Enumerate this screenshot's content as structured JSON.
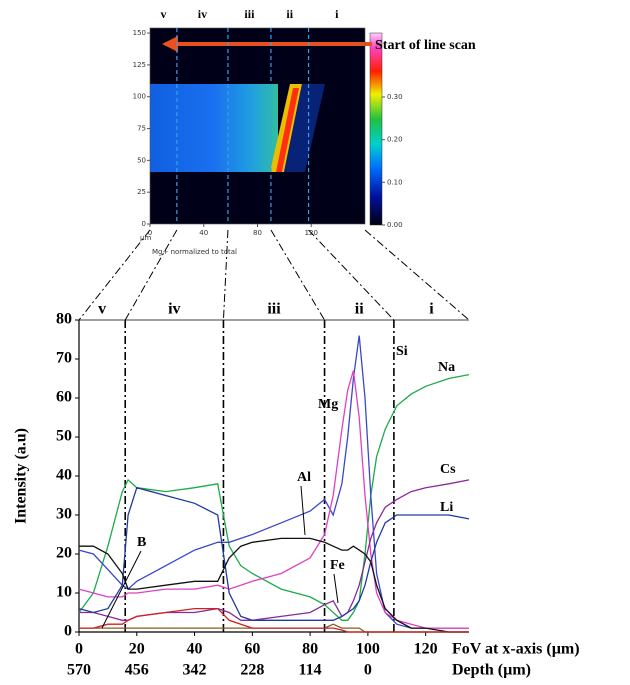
{
  "chart_data": [
    {
      "type": "heatmap",
      "xlabel": "Mg+ normalized to total",
      "xunit": "µm",
      "annotation": "Start of line scan",
      "xlim": [
        0,
        160
      ],
      "ylim": [
        0,
        154
      ],
      "xticks": [
        0,
        40,
        80,
        120
      ],
      "yticks": [
        0,
        25,
        50,
        75,
        100,
        125,
        150
      ],
      "colorbar_lim": [
        0,
        0.45
      ],
      "colorbar_ticks": [
        {
          "value": 0,
          "label": "0.00"
        },
        {
          "value": 0.1,
          "label": "0.10"
        },
        {
          "value": 0.2,
          "label": "0.20"
        },
        {
          "value": 0.3,
          "label": "0.30"
        }
      ],
      "regions": [
        "v",
        "iv",
        "iii",
        "ii",
        "i"
      ],
      "boundaries": [
        20,
        58,
        90,
        118
      ]
    },
    {
      "type": "line",
      "ylabel": "Intensity (a.u)",
      "xlabel": "FoV at x-axis (µm)",
      "x2label": "Depth (µm)",
      "xlim": [
        0,
        135
      ],
      "ylim": [
        0,
        80
      ],
      "xticks": [
        0,
        20,
        40,
        60,
        80,
        100,
        120
      ],
      "yticks": [
        0,
        10,
        20,
        30,
        40,
        50,
        60,
        70,
        80
      ],
      "x2lim": [
        570,
        -199.5
      ],
      "x2ticks": [
        570,
        456,
        342,
        228,
        114,
        0
      ],
      "regions": [
        "v",
        "iv",
        "iii",
        "ii",
        "i"
      ],
      "boundaries": [
        16,
        50,
        85,
        109
      ],
      "x": [
        0,
        5,
        10,
        15,
        17,
        20,
        30,
        40,
        48,
        52,
        56,
        60,
        70,
        80,
        85,
        88,
        91,
        93,
        95,
        97,
        99,
        101,
        103,
        106,
        110,
        115,
        120,
        128,
        135
      ],
      "series": [
        {
          "name": "Na",
          "color": "#1daa4a",
          "values": [
            5,
            10,
            22,
            36,
            39,
            37,
            36,
            37,
            38,
            22,
            17,
            15,
            11,
            9,
            7,
            5,
            3,
            3,
            5,
            8,
            20,
            35,
            45,
            52,
            58,
            61,
            63,
            65,
            66
          ]
        },
        {
          "name": "Si",
          "color": "#3a48c8",
          "values": [
            21,
            20,
            16,
            12,
            11,
            13,
            17,
            21,
            23,
            23,
            24,
            25,
            28,
            31,
            34,
            30,
            38,
            50,
            65,
            76,
            60,
            35,
            15,
            5,
            2,
            1,
            1,
            1,
            1
          ]
        },
        {
          "name": "Mg",
          "color": "#e040c0",
          "values": [
            11,
            10,
            9,
            9,
            10,
            10,
            11,
            11,
            12,
            11,
            12,
            13,
            15,
            19,
            25,
            35,
            52,
            62,
            67,
            55,
            35,
            20,
            10,
            5,
            3,
            2,
            1,
            1,
            1
          ]
        },
        {
          "name": "Cs",
          "color": "#8a2a9a",
          "values": [
            5,
            5,
            4,
            3,
            3,
            4,
            5,
            5,
            6,
            5,
            3,
            3,
            4,
            5,
            7,
            8,
            4,
            5,
            8,
            12,
            18,
            24,
            28,
            32,
            34,
            36,
            37,
            38,
            39
          ]
        },
        {
          "name": "Li",
          "color": "#1f3a9e",
          "values": [
            6,
            5,
            6,
            12,
            30,
            37,
            35,
            33,
            30,
            10,
            4,
            3,
            3,
            3,
            3,
            3,
            4,
            5,
            6,
            8,
            12,
            18,
            23,
            28,
            30,
            30,
            30,
            30,
            29
          ]
        },
        {
          "name": "Al",
          "color": "#111111",
          "values": [
            22,
            22,
            20,
            15,
            11,
            11,
            12,
            13,
            13,
            19,
            22,
            23,
            24,
            24,
            23,
            22,
            21,
            21,
            22,
            21,
            20,
            18,
            12,
            6,
            3,
            1,
            1,
            0,
            0
          ]
        },
        {
          "name": "Fe",
          "color": "#8a5a20",
          "values": [
            1,
            1,
            1,
            1,
            1,
            1,
            1,
            1,
            1,
            1,
            1,
            1,
            1,
            1,
            1,
            2,
            1,
            1,
            1,
            1,
            0,
            0,
            0,
            0,
            0,
            0,
            0,
            0,
            0
          ]
        },
        {
          "name": "B",
          "color": "#d02020",
          "values": [
            1,
            1,
            2,
            2,
            3,
            4,
            5,
            6,
            6,
            3,
            2,
            1,
            1,
            1,
            1,
            1,
            0.5,
            0,
            0,
            0,
            0,
            0,
            0,
            0,
            0,
            0,
            0,
            0,
            0
          ]
        }
      ]
    }
  ]
}
